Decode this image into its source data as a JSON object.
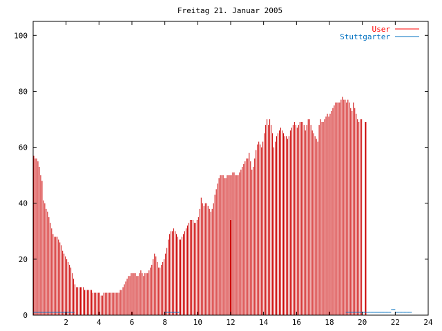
{
  "chart_data": {
    "type": "bar",
    "title": "Freitag 21. Januar 2005",
    "xlabel": "",
    "ylabel": "",
    "xlim": [
      0,
      24
    ],
    "ylim": [
      0,
      105
    ],
    "xticks": [
      2,
      4,
      6,
      8,
      10,
      12,
      14,
      16,
      18,
      20,
      22,
      24
    ],
    "yticks": [
      0,
      20,
      40,
      60,
      80,
      100
    ],
    "grid": false,
    "legend_position": "top-right",
    "bin_minutes": 5,
    "series": [
      {
        "name": "User",
        "color": "#cc0000",
        "values": [
          57,
          56,
          56,
          55,
          53,
          50,
          48,
          41,
          40,
          38,
          37,
          35,
          33,
          31,
          29,
          28,
          28,
          28,
          27,
          26,
          25,
          23,
          22,
          21,
          20,
          19,
          18,
          17,
          15,
          13,
          11,
          10,
          10,
          10,
          10,
          10,
          10,
          9,
          9,
          9,
          9,
          9,
          9,
          8,
          8,
          8,
          8,
          8,
          8,
          7,
          7,
          8,
          8,
          8,
          8,
          8,
          8,
          8,
          8,
          8,
          8,
          8,
          8,
          9,
          9,
          10,
          11,
          12,
          13,
          14,
          14,
          15,
          15,
          15,
          15,
          14,
          14,
          15,
          16,
          15,
          14,
          15,
          15,
          15,
          16,
          17,
          18,
          20,
          22,
          21,
          19,
          17,
          17,
          18,
          19,
          20,
          22,
          24,
          27,
          29,
          30,
          30,
          31,
          30,
          29,
          28,
          27,
          27,
          28,
          29,
          30,
          31,
          32,
          33,
          34,
          34,
          34,
          33,
          33,
          34,
          35,
          38,
          42,
          40,
          39,
          40,
          40,
          39,
          38,
          37,
          38,
          40,
          43,
          45,
          47,
          49,
          50,
          50,
          50,
          49,
          49,
          50,
          50,
          50,
          50,
          51,
          51,
          50,
          50,
          50,
          51,
          52,
          53,
          54,
          55,
          56,
          56,
          58,
          55,
          52,
          53,
          56,
          59,
          61,
          62,
          61,
          60,
          62,
          65,
          68,
          70,
          68,
          70,
          68,
          65,
          60,
          62,
          64,
          65,
          66,
          67,
          66,
          65,
          64,
          64,
          63,
          64,
          66,
          67,
          68,
          69,
          68,
          67,
          68,
          69,
          69,
          69,
          68,
          66,
          68,
          70,
          70,
          68,
          66,
          65,
          64,
          63,
          62,
          68,
          70,
          69,
          69,
          70,
          71,
          72,
          71,
          72,
          73,
          74,
          75,
          76,
          76,
          76,
          76,
          77,
          78,
          77,
          77,
          76,
          77,
          76,
          74,
          73,
          76,
          74,
          72,
          70,
          69,
          70,
          70
        ]
      },
      {
        "name": "Stuttgarter",
        "color": "#0070c0",
        "values": [
          1,
          1,
          1,
          1,
          1,
          1,
          1,
          1,
          1,
          1,
          1,
          1,
          1,
          1,
          1,
          1,
          1,
          1,
          1,
          1,
          1,
          1,
          1,
          1,
          1,
          1,
          1,
          1,
          1,
          1,
          0,
          0,
          0,
          0,
          0,
          0,
          0,
          0,
          0,
          0,
          0,
          0,
          0,
          0,
          0,
          0,
          0,
          0,
          0,
          0,
          0,
          0,
          0,
          0,
          0,
          0,
          0,
          0,
          0,
          0,
          0,
          0,
          0,
          0,
          0,
          0,
          0,
          0,
          0,
          0,
          0,
          0,
          0,
          0,
          0,
          0,
          0,
          0,
          0,
          0,
          0,
          0,
          0,
          0,
          0,
          0,
          0,
          0,
          0,
          0,
          0,
          0,
          0,
          0,
          0,
          0,
          1,
          1,
          1,
          1,
          1,
          1,
          1,
          1,
          1,
          1,
          1,
          0,
          0,
          0,
          0,
          0,
          0,
          0,
          0,
          0,
          0,
          0,
          0,
          0,
          0,
          0,
          0,
          0,
          0,
          0,
          0,
          0,
          0,
          0,
          0,
          0,
          0,
          0,
          0,
          0,
          0,
          0,
          0,
          0,
          0,
          0,
          0,
          0,
          0,
          0,
          0,
          0,
          0,
          0,
          0,
          0,
          0,
          0,
          0,
          0,
          0,
          0,
          0,
          0,
          0,
          0,
          0,
          0,
          0,
          0,
          0,
          0,
          0,
          0,
          0,
          0,
          0,
          0,
          0,
          0,
          0,
          0,
          0,
          0,
          0,
          0,
          0,
          0,
          0,
          0,
          0,
          0,
          0,
          0,
          0,
          0,
          0,
          0,
          0,
          0,
          0,
          0,
          0,
          0,
          0,
          0,
          0,
          0,
          0,
          0,
          0,
          0,
          0,
          0,
          0,
          0,
          0,
          0,
          0,
          0,
          0,
          0,
          0,
          0,
          0,
          0,
          0,
          0,
          0,
          0,
          0,
          0,
          1,
          1,
          1,
          1,
          1,
          1,
          1,
          1,
          1,
          1,
          1,
          1,
          1,
          1,
          1,
          1,
          1,
          1,
          1,
          1,
          1,
          1,
          1,
          1,
          1,
          1,
          1,
          1,
          1,
          1,
          1,
          1,
          1,
          2,
          2,
          2,
          1,
          1,
          1,
          1,
          1,
          1,
          1,
          1,
          1,
          1,
          1,
          1
        ]
      }
    ],
    "highlights": [
      {
        "x": 12.0,
        "value": 34,
        "color": "#cc0000"
      },
      {
        "x": 20.2,
        "value": 69,
        "color": "#cc0000"
      }
    ]
  }
}
